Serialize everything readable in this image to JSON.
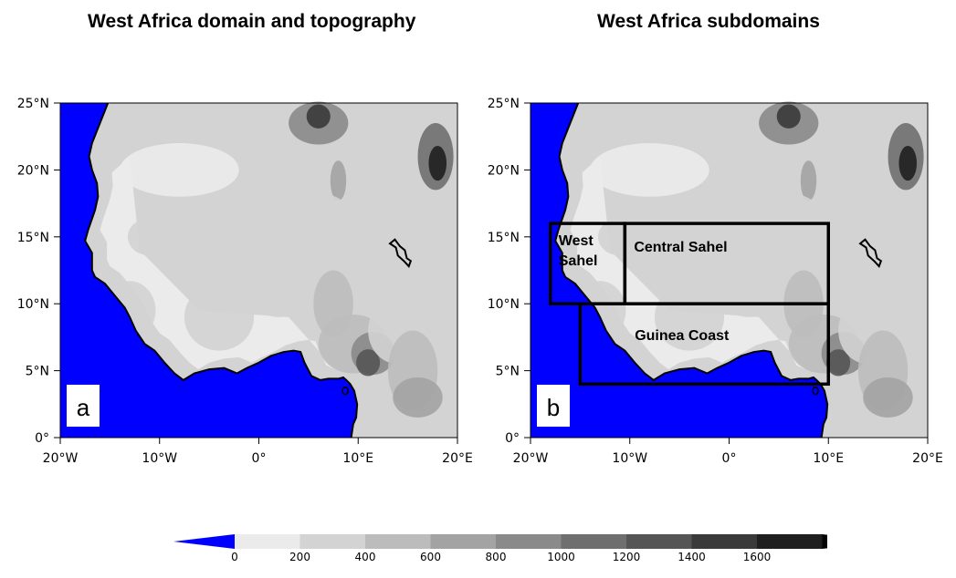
{
  "titles": {
    "left": "West Africa domain and topography",
    "right": "West Africa subdomains"
  },
  "panel_letters": [
    "a",
    "b"
  ],
  "axes": {
    "x_ticks": [
      "20°W",
      "10°W",
      "0°",
      "10°E",
      "20°E"
    ],
    "y_ticks": [
      "0°",
      "5°N",
      "10°N",
      "15°N",
      "20°N",
      "25°N"
    ],
    "lon_range": [
      -20,
      20
    ],
    "lat_range": [
      0,
      25
    ]
  },
  "subdomains": [
    {
      "name": "West Sahel",
      "label_lines": [
        "West",
        "Sahel"
      ],
      "lon": [
        -18,
        -10.5
      ],
      "lat": [
        10,
        16
      ]
    },
    {
      "name": "Central Sahel",
      "label_lines": [
        "Central Sahel"
      ],
      "lon": [
        -10.5,
        10
      ],
      "lat": [
        10,
        16
      ]
    },
    {
      "name": "Guinea Coast",
      "label_lines": [
        "Guinea Coast"
      ],
      "lon": [
        -15,
        10
      ],
      "lat": [
        4,
        10
      ]
    }
  ],
  "colorbar": {
    "labels": [
      "0",
      "200",
      "400",
      "600",
      "800",
      "1000",
      "1200",
      "1400",
      "1600"
    ],
    "low_color": "#0000ff",
    "colors": [
      "#ebebeb",
      "#d3d3d3",
      "#bcbcbc",
      "#a3a3a3",
      "#8a8a8a",
      "#6f6f6f",
      "#555555",
      "#3a3a3a",
      "#1f1f1f",
      "#050505"
    ]
  },
  "colors": {
    "ocean": "#0000ff",
    "border": "#000000"
  }
}
